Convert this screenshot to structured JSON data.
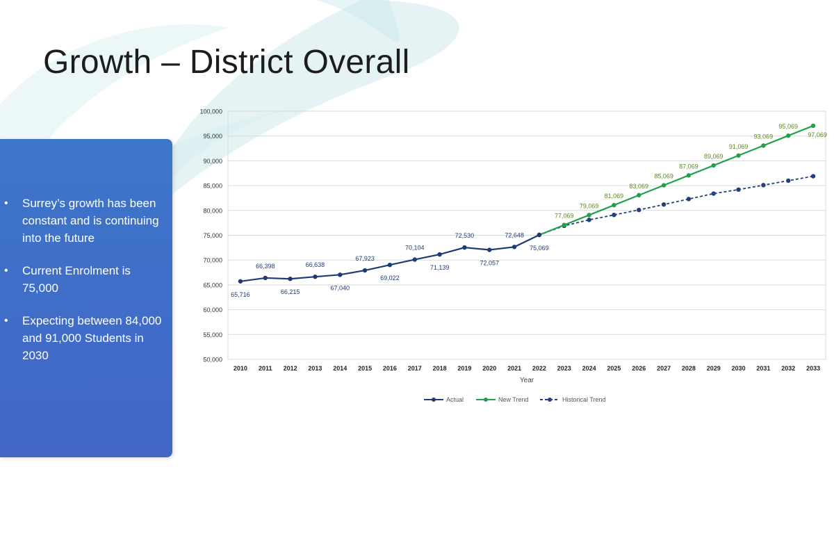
{
  "slide": {
    "title": "Growth – District Overall",
    "bullets": [
      "Surrey’s growth has been constant and is continuing into the future",
      "Current Enrolment is 75,000",
      "Expecting between 84,000 and 91,000 Students in 2030"
    ]
  },
  "colors": {
    "actual": "#1f3b73",
    "new_trend": "#22a04c",
    "new_trend_labels": "#5b8a1f",
    "historical": "#22407a",
    "info_box": "#3f6cc8",
    "background_swoosh": "#d6eef0"
  },
  "chart_data": {
    "type": "line",
    "xlabel": "Year",
    "ylabel": "",
    "ylim": [
      50000,
      100000
    ],
    "y_ticks": [
      "50,000",
      "55,000",
      "60,000",
      "65,000",
      "70,000",
      "75,000",
      "80,000",
      "85,000",
      "90,000",
      "95,000",
      "100,000"
    ],
    "x": [
      2010,
      2011,
      2012,
      2013,
      2014,
      2015,
      2016,
      2017,
      2018,
      2019,
      2020,
      2021,
      2022,
      2023,
      2024,
      2025,
      2026,
      2027,
      2028,
      2029,
      2030,
      2031,
      2032,
      2033
    ],
    "grid": true,
    "legend_position": "bottom",
    "series": [
      {
        "name": "Actual",
        "style": "solid",
        "x": [
          2010,
          2011,
          2012,
          2013,
          2014,
          2015,
          2016,
          2017,
          2018,
          2019,
          2020,
          2021,
          2022
        ],
        "values": [
          65716,
          66398,
          66215,
          66638,
          67040,
          67923,
          69022,
          70104,
          71139,
          72530,
          72057,
          72648,
          75069
        ],
        "labels": [
          "65,716",
          "66,398",
          "66,215",
          "66,638",
          "67,040",
          "67,923",
          "69,022",
          "70,104",
          "71,139",
          "72,530",
          "72,057",
          "72,648",
          "75,069"
        ]
      },
      {
        "name": "New Trend",
        "style": "solid",
        "x": [
          2022,
          2023,
          2024,
          2025,
          2026,
          2027,
          2028,
          2029,
          2030,
          2031,
          2032,
          2033
        ],
        "values": [
          75069,
          77069,
          79069,
          81069,
          83069,
          85069,
          87069,
          89069,
          91069,
          93069,
          95069,
          97069
        ],
        "labels": [
          "",
          "77,069",
          "79,069",
          "81,069",
          "83,069",
          "85,069",
          "87,069",
          "89,069",
          "91,069",
          "93,069",
          "95,069",
          "97,069"
        ]
      },
      {
        "name": "Historical Trend",
        "style": "dashed",
        "x": [
          2022,
          2023,
          2024,
          2025,
          2026,
          2027,
          2028,
          2029,
          2030,
          2031,
          2032,
          2033
        ],
        "values": [
          75069,
          76900,
          78100,
          79100,
          80100,
          81200,
          82300,
          83400,
          84200,
          85100,
          86000,
          86900
        ]
      }
    ]
  }
}
